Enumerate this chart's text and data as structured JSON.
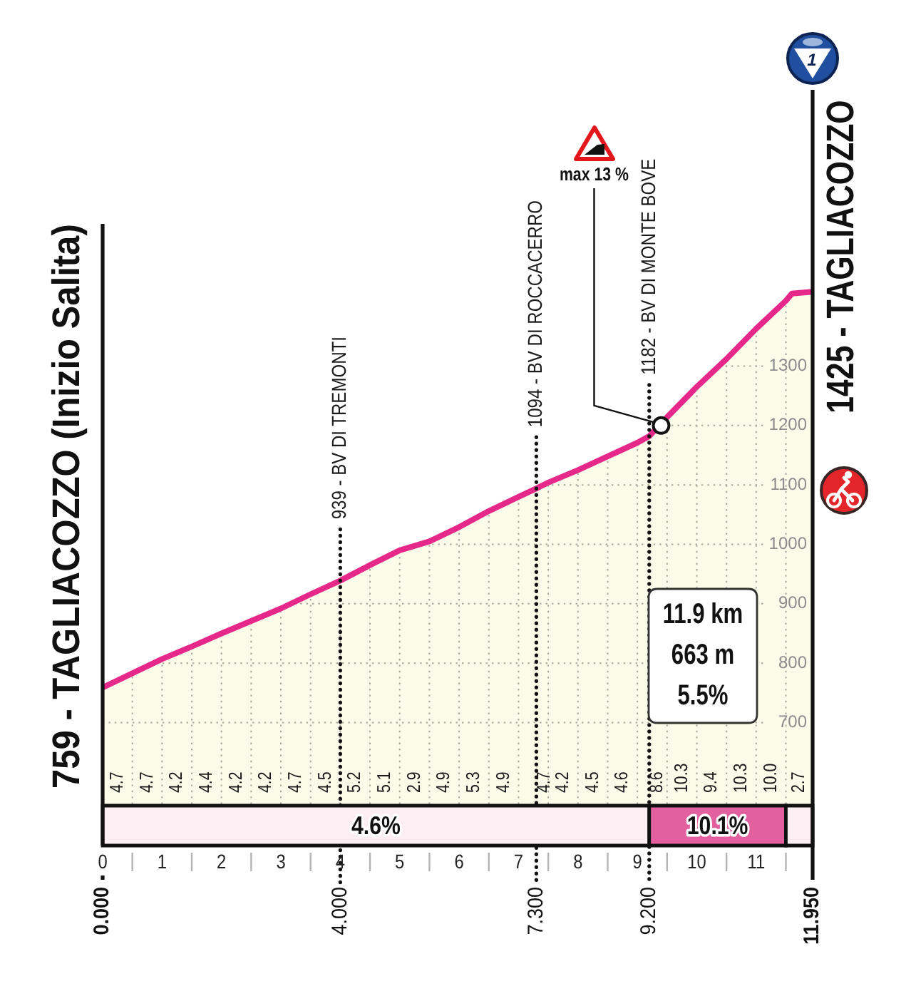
{
  "chart_data": {
    "type": "area",
    "x": [
      0,
      0.5,
      1,
      1.5,
      2,
      2.5,
      3,
      3.5,
      4,
      4.5,
      5,
      5.5,
      6,
      6.5,
      7,
      7.3,
      7.5,
      8,
      8.5,
      9,
      9.2,
      9.5,
      10,
      10.5,
      11,
      11.5,
      11.6,
      11.95
    ],
    "series": [
      {
        "color": "#e5288a",
        "values": [
          759,
          783,
          807,
          828,
          850,
          871,
          892,
          916,
          939,
          965,
          990,
          1005,
          1029,
          1056,
          1080,
          1094,
          1104,
          1125,
          1148,
          1171,
          1182,
          1214,
          1265,
          1312,
          1363,
          1410,
          1422,
          1425
        ]
      }
    ],
    "xlim": [
      0,
      11.95
    ],
    "xticks": [
      0,
      {
        "value": 0.5,
        "label": null
      },
      1,
      {
        "value": 1.5,
        "label": null
      },
      2,
      {
        "value": 2.5,
        "label": null
      },
      3,
      {
        "value": 3.5,
        "label": null
      },
      4,
      {
        "value": 4.5,
        "label": null
      },
      5,
      {
        "value": 5.5,
        "label": null
      },
      6,
      {
        "value": 6.5,
        "label": null
      },
      7,
      {
        "value": 7.5,
        "label": null
      },
      8,
      {
        "value": 8.5,
        "label": null
      },
      9,
      {
        "value": 9.5,
        "label": null
      },
      10,
      {
        "value": 10.5,
        "label": null
      },
      11,
      {
        "value": 11.5,
        "label": null
      }
    ],
    "x2lim": [
      0,
      11.95
    ],
    "x2ticks": [
      {
        "value": 0,
        "label": "0.000"
      },
      {
        "value": 4,
        "label": "4.000"
      },
      {
        "value": 7.3,
        "label": "7.300"
      },
      {
        "value": 9.2,
        "label": "9.200"
      },
      {
        "value": 11.95,
        "label": "11.950"
      }
    ],
    "ylim": [
      493,
      1765
    ],
    "yticks": [
      700,
      800,
      900,
      1000,
      1100,
      1200,
      1300
    ],
    "grid": true,
    "ref_lines": [
      {
        "axis": "x",
        "value": 4,
        "label": "939 - BV DI TREMONTI",
        "line_style": "dotted"
      },
      {
        "axis": "x",
        "value": 7.3,
        "label": "1094 - BV DI ROCCACERRO",
        "line_style": "dotted"
      },
      {
        "axis": "x",
        "value": 9.2,
        "label": "1182 - BV DI MONTE BOVE",
        "line_style": "dotted"
      }
    ],
    "bands": [
      {
        "axis": "x",
        "from": 0,
        "to": 9.2,
        "label": "4.6%",
        "color": "#fdeef4"
      },
      {
        "axis": "x",
        "from": 9.2,
        "to": 11.5,
        "label": "10.1%",
        "color": "#e3609f"
      },
      {
        "axis": "x",
        "from": 11.5,
        "to": 11.95,
        "color": "#fdeef4"
      }
    ],
    "annotations": [
      {
        "text": "759 - TAGLIACOZZO (Inizio Salita)",
        "x": 0,
        "y": 759
      },
      {
        "text": "1425 - TAGLIACOZZO",
        "x": 11.95,
        "y": 1425
      },
      {
        "text": "max 13 %",
        "x": 9.4,
        "y": 1200
      },
      "1",
      "11.9 km",
      "663 m",
      "5.5%",
      "4.7",
      "4.7",
      "4.2",
      "4.4",
      "4.2",
      "4.2",
      "4.7",
      "4.5",
      "5.2",
      "5.1",
      "2.9",
      "4.9",
      "5.3",
      "4.9",
      "4.7",
      "4.2",
      "4.5",
      "4.6",
      "8.6",
      "10.3",
      "9.4",
      "10.3",
      "10.0",
      "2.7"
    ]
  }
}
